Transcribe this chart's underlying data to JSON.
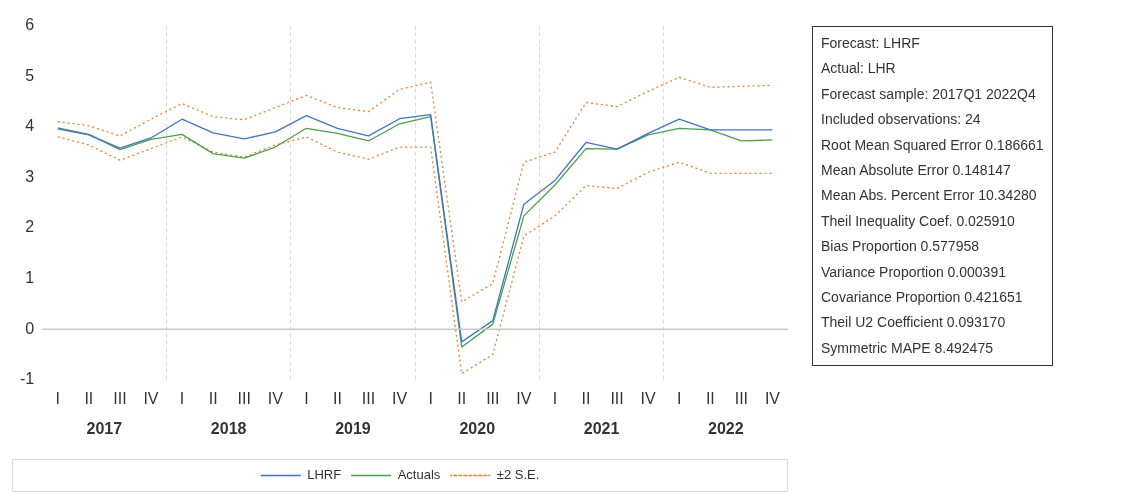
{
  "chart_data": [
    {
      "type": "line",
      "categories": [
        "I",
        "II",
        "III",
        "IV",
        "I",
        "II",
        "III",
        "IV",
        "I",
        "II",
        "III",
        "IV",
        "I",
        "II",
        "III",
        "IV",
        "I",
        "II",
        "III",
        "IV",
        "I",
        "II",
        "III",
        "IV"
      ],
      "annotations": [
        "2017",
        "2018",
        "2019",
        "2020",
        "2021",
        "2022"
      ],
      "series": [
        {
          "name": "LHRF",
          "color": "#4472c4",
          "line_style": "solid",
          "values": [
            3.96,
            3.84,
            3.58,
            3.78,
            4.15,
            3.88,
            3.76,
            3.9,
            4.22,
            3.97,
            3.82,
            4.16,
            4.24,
            -0.25,
            0.17,
            2.47,
            2.94,
            3.69,
            3.56,
            3.87,
            4.15,
            3.94,
            3.94,
            3.94
          ]
        },
        {
          "name": "Actuals",
          "color": "#4aa04a",
          "line_style": "solid",
          "values": [
            3.98,
            3.85,
            3.55,
            3.75,
            3.85,
            3.47,
            3.38,
            3.6,
            3.97,
            3.87,
            3.72,
            4.06,
            4.2,
            -0.35,
            0.1,
            2.24,
            2.85,
            3.57,
            3.56,
            3.84,
            3.97,
            3.94,
            3.72,
            3.74
          ]
        },
        {
          "name": "±2 S.E.",
          "color": "#ed7d31",
          "line_style": "dotted",
          "values": [
            4.1,
            4.02,
            3.82,
            4.15,
            4.46,
            4.2,
            4.14,
            4.38,
            4.62,
            4.38,
            4.3,
            4.74,
            4.88,
            0.54,
            0.9,
            3.3,
            3.5,
            4.48,
            4.4,
            4.7,
            4.98,
            4.78,
            4.8,
            4.82
          ]
        },
        {
          "color": "#ed7d31",
          "line_style": "dotted",
          "values": [
            3.8,
            3.64,
            3.34,
            3.57,
            3.8,
            3.5,
            3.4,
            3.64,
            3.8,
            3.5,
            3.36,
            3.6,
            3.6,
            -0.88,
            -0.5,
            1.84,
            2.24,
            2.84,
            2.78,
            3.1,
            3.3,
            3.08,
            3.08,
            3.08
          ]
        }
      ],
      "ylim": [
        -1,
        6
      ],
      "yticks": [
        -1,
        0,
        1,
        2,
        3,
        4,
        5,
        6
      ],
      "grid": "x",
      "legend": "bottom",
      "marker": "none",
      "ref_lines": [
        {
          "axis": "y",
          "value": 0,
          "color": "#c8c8c8"
        }
      ]
    },
    {
      "type": "other",
      "annotations": [
        "Forecast: LHRF",
        "Actual: LHR",
        "Forecast sample: 2017Q1 2022Q4",
        "Included observations: 24",
        "Root Mean Squared Error 0.186661",
        "Mean Absolute Error 0.148147",
        "Mean Abs. Percent Error 10.34280",
        "Theil Inequality Coef. 0.025910",
        "Bias Proportion 0.577958",
        "Variance Proportion 0.000391",
        "Covariance Proportion 0.421651",
        "Theil U2 Coefficient 0.093170",
        "Symmetric MAPE 8.492475"
      ]
    }
  ]
}
